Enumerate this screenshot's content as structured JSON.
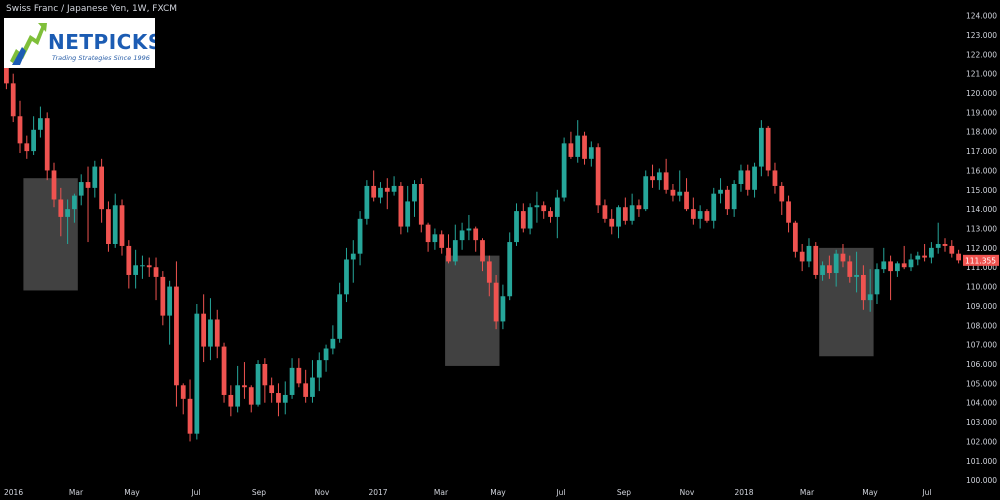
{
  "chart_title": "Swiss Franc / Japanese Yen, 1W, FXCM",
  "logo": {
    "word": "NETPICKS",
    "tagline": "Trading Strategies Since 1996"
  },
  "colors": {
    "background": "#000000",
    "up": "#26a69a",
    "down": "#ef5350",
    "axis_text": "#d1d4dc",
    "highlight": "#777777"
  },
  "chart_data": {
    "type": "candlestick",
    "title": "Swiss Franc / Japanese Yen, 1W, FXCM",
    "ylim": [
      99.8,
      124.6
    ],
    "yticks": [
      "100.000",
      "101.000",
      "102.000",
      "103.000",
      "104.000",
      "105.000",
      "106.000",
      "107.000",
      "108.000",
      "109.000",
      "110.000",
      "111.000",
      "112.000",
      "113.000",
      "114.000",
      "115.000",
      "116.000",
      "117.000",
      "118.000",
      "119.000",
      "120.000",
      "121.000",
      "122.000",
      "123.000",
      "124.000"
    ],
    "xticks": [
      "2016",
      "Mar",
      "May",
      "Jul",
      "Sep",
      "Nov",
      "2017",
      "Mar",
      "May",
      "Jul",
      "Sep",
      "Nov",
      "2018",
      "Mar",
      "May",
      "Jul"
    ],
    "last_price_label": "111.355",
    "candles": [
      [
        121.3,
        121.6,
        120.2,
        120.5
      ],
      [
        120.5,
        121.0,
        118.5,
        118.8
      ],
      [
        118.8,
        119.6,
        116.9,
        117.4
      ],
      [
        117.4,
        117.8,
        116.6,
        117.0
      ],
      [
        117.0,
        118.8,
        116.8,
        118.1
      ],
      [
        118.1,
        119.3,
        117.7,
        118.7
      ],
      [
        118.7,
        119.0,
        115.5,
        116.0
      ],
      [
        116.0,
        116.4,
        114.1,
        114.5
      ],
      [
        114.5,
        115.1,
        112.6,
        113.6
      ],
      [
        113.6,
        114.5,
        112.2,
        114.0
      ],
      [
        114.0,
        114.8,
        113.3,
        114.7
      ],
      [
        114.7,
        115.8,
        114.2,
        115.4
      ],
      [
        115.4,
        116.2,
        112.3,
        115.1
      ],
      [
        115.1,
        116.5,
        114.6,
        116.2
      ],
      [
        116.2,
        116.6,
        113.3,
        114.0
      ],
      [
        114.0,
        114.4,
        111.8,
        112.2
      ],
      [
        112.2,
        114.8,
        112.0,
        114.2
      ],
      [
        114.2,
        114.5,
        111.6,
        112.1
      ],
      [
        112.1,
        112.4,
        109.9,
        110.6
      ],
      [
        110.6,
        111.9,
        109.9,
        111.1
      ],
      [
        111.1,
        111.6,
        110.4,
        111.1
      ],
      [
        111.1,
        111.5,
        110.5,
        111.0
      ],
      [
        111.0,
        111.5,
        109.3,
        110.5
      ],
      [
        110.5,
        110.8,
        108.0,
        108.5
      ],
      [
        108.5,
        110.3,
        107.0,
        110.0
      ],
      [
        110.0,
        111.3,
        103.8,
        104.9
      ],
      [
        104.9,
        105.0,
        103.4,
        104.2
      ],
      [
        104.2,
        105.2,
        102.0,
        102.4
      ],
      [
        102.4,
        109.1,
        102.1,
        108.6
      ],
      [
        108.6,
        109.6,
        106.1,
        106.9
      ],
      [
        106.9,
        109.4,
        106.2,
        108.3
      ],
      [
        108.3,
        108.8,
        106.3,
        106.9
      ],
      [
        106.9,
        107.1,
        104.0,
        104.4
      ],
      [
        104.4,
        104.9,
        103.3,
        103.8
      ],
      [
        103.8,
        105.9,
        103.5,
        104.9
      ],
      [
        104.9,
        106.1,
        104.2,
        104.8
      ],
      [
        104.8,
        104.9,
        103.5,
        103.9
      ],
      [
        103.9,
        106.2,
        103.8,
        106.0
      ],
      [
        106.0,
        106.3,
        104.0,
        104.9
      ],
      [
        104.9,
        105.3,
        104.0,
        104.5
      ],
      [
        104.5,
        105.0,
        103.3,
        104.0
      ],
      [
        104.0,
        105.1,
        103.4,
        104.4
      ],
      [
        104.4,
        106.3,
        104.2,
        105.8
      ],
      [
        105.8,
        106.3,
        104.8,
        105.0
      ],
      [
        105.0,
        105.7,
        104.0,
        104.3
      ],
      [
        104.3,
        106.2,
        104.0,
        105.3
      ],
      [
        105.3,
        106.6,
        104.6,
        106.2
      ],
      [
        106.2,
        107.0,
        105.6,
        106.8
      ],
      [
        106.8,
        108.0,
        106.5,
        107.3
      ],
      [
        107.3,
        110.2,
        107.1,
        109.6
      ],
      [
        109.6,
        112.0,
        109.2,
        111.4
      ],
      [
        111.4,
        112.4,
        110.2,
        111.7
      ],
      [
        111.7,
        113.9,
        111.1,
        113.5
      ],
      [
        113.5,
        115.5,
        113.2,
        115.2
      ],
      [
        115.2,
        116.0,
        114.4,
        114.6
      ],
      [
        114.6,
        115.4,
        114.3,
        115.1
      ],
      [
        115.1,
        115.6,
        114.0,
        114.9
      ],
      [
        114.9,
        115.7,
        114.7,
        115.2
      ],
      [
        115.2,
        115.4,
        112.7,
        113.1
      ],
      [
        113.1,
        115.2,
        112.8,
        114.4
      ],
      [
        114.4,
        115.5,
        113.6,
        115.3
      ],
      [
        115.3,
        115.6,
        112.8,
        113.2
      ],
      [
        113.2,
        113.3,
        111.8,
        112.3
      ],
      [
        112.3,
        113.0,
        111.9,
        112.7
      ],
      [
        112.7,
        112.9,
        111.7,
        112.0
      ],
      [
        112.0,
        112.7,
        111.2,
        111.3
      ],
      [
        111.3,
        113.2,
        111.1,
        112.4
      ],
      [
        112.4,
        113.3,
        111.9,
        112.9
      ],
      [
        112.9,
        113.7,
        112.4,
        113.0
      ],
      [
        113.0,
        113.1,
        111.8,
        112.4
      ],
      [
        112.4,
        112.5,
        110.8,
        111.3
      ],
      [
        111.3,
        111.6,
        109.5,
        110.2
      ],
      [
        110.2,
        110.6,
        107.8,
        108.2
      ],
      [
        108.2,
        110.1,
        107.8,
        109.5
      ],
      [
        109.5,
        112.8,
        109.3,
        112.3
      ],
      [
        112.3,
        114.3,
        112.1,
        113.9
      ],
      [
        113.9,
        114.3,
        112.8,
        113.0
      ],
      [
        113.0,
        114.3,
        112.7,
        114.1
      ],
      [
        114.1,
        114.9,
        113.3,
        114.2
      ],
      [
        114.2,
        114.4,
        113.5,
        113.9
      ],
      [
        113.9,
        114.1,
        113.3,
        113.6
      ],
      [
        113.6,
        115.0,
        112.5,
        114.6
      ],
      [
        114.6,
        117.7,
        114.4,
        117.4
      ],
      [
        117.4,
        118.0,
        116.6,
        116.7
      ],
      [
        116.7,
        118.6,
        116.4,
        117.8
      ],
      [
        117.8,
        118.0,
        116.3,
        116.6
      ],
      [
        116.6,
        117.5,
        116.2,
        117.2
      ],
      [
        117.2,
        117.4,
        113.8,
        114.2
      ],
      [
        114.2,
        114.5,
        113.3,
        113.5
      ],
      [
        113.5,
        114.0,
        112.7,
        113.1
      ],
      [
        113.1,
        114.2,
        112.5,
        114.1
      ],
      [
        114.1,
        114.6,
        113.2,
        113.4
      ],
      [
        113.4,
        114.8,
        113.2,
        114.2
      ],
      [
        114.2,
        114.5,
        113.6,
        114.0
      ],
      [
        114.0,
        116.0,
        113.9,
        115.7
      ],
      [
        115.7,
        116.3,
        115.1,
        115.5
      ],
      [
        115.5,
        116.1,
        115.0,
        115.9
      ],
      [
        115.9,
        116.6,
        114.8,
        115.0
      ],
      [
        115.0,
        115.3,
        114.4,
        114.7
      ],
      [
        114.7,
        116.0,
        114.4,
        114.9
      ],
      [
        114.9,
        115.6,
        113.9,
        114.0
      ],
      [
        114.0,
        114.6,
        113.2,
        113.5
      ],
      [
        113.5,
        114.2,
        113.0,
        113.9
      ],
      [
        113.9,
        114.0,
        113.3,
        113.4
      ],
      [
        113.4,
        115.1,
        113.0,
        114.8
      ],
      [
        114.8,
        115.6,
        114.3,
        115.0
      ],
      [
        115.0,
        115.2,
        113.7,
        114.0
      ],
      [
        114.0,
        115.5,
        113.6,
        115.3
      ],
      [
        115.3,
        116.3,
        114.9,
        116.0
      ],
      [
        116.0,
        116.3,
        114.7,
        115.0
      ],
      [
        115.0,
        116.4,
        114.6,
        116.2
      ],
      [
        116.2,
        118.6,
        115.7,
        118.2
      ],
      [
        118.2,
        118.3,
        115.7,
        116.0
      ],
      [
        116.0,
        116.4,
        114.8,
        115.2
      ],
      [
        115.2,
        115.4,
        113.7,
        114.4
      ],
      [
        114.4,
        114.7,
        112.8,
        113.3
      ],
      [
        113.3,
        113.4,
        111.5,
        111.8
      ],
      [
        111.8,
        112.2,
        110.8,
        111.3
      ],
      [
        111.3,
        112.5,
        111.0,
        112.1
      ],
      [
        112.1,
        112.3,
        110.4,
        110.6
      ],
      [
        110.6,
        111.3,
        110.3,
        111.1
      ],
      [
        111.1,
        111.6,
        110.4,
        110.7
      ],
      [
        110.7,
        111.9,
        110.0,
        111.7
      ],
      [
        111.7,
        112.2,
        111.0,
        111.3
      ],
      [
        111.3,
        111.6,
        110.2,
        110.5
      ],
      [
        110.5,
        111.8,
        109.7,
        110.6
      ],
      [
        110.6,
        111.1,
        108.8,
        109.3
      ],
      [
        109.3,
        110.9,
        108.7,
        109.6
      ],
      [
        109.6,
        111.2,
        109.1,
        110.9
      ],
      [
        110.9,
        112.0,
        110.7,
        111.3
      ],
      [
        111.3,
        111.6,
        109.3,
        110.8
      ],
      [
        110.8,
        111.3,
        110.5,
        111.2
      ],
      [
        111.2,
        112.1,
        110.9,
        111.0
      ],
      [
        111.0,
        111.7,
        110.8,
        111.4
      ],
      [
        111.4,
        111.8,
        111.1,
        111.6
      ],
      [
        111.6,
        112.2,
        111.3,
        111.5
      ],
      [
        111.5,
        112.3,
        111.2,
        112.0
      ],
      [
        112.0,
        113.3,
        111.7,
        112.2
      ],
      [
        112.2,
        112.5,
        111.8,
        112.1
      ],
      [
        112.1,
        112.4,
        111.5,
        111.7
      ],
      [
        111.7,
        111.9,
        111.2,
        111.355
      ]
    ],
    "highlights": [
      {
        "from": 3,
        "to": 10,
        "low": 109.8,
        "high": 115.6
      },
      {
        "from": 65,
        "to": 72,
        "low": 105.9,
        "high": 111.6
      },
      {
        "from": 120,
        "to": 127,
        "low": 106.4,
        "high": 112.0
      }
    ]
  }
}
